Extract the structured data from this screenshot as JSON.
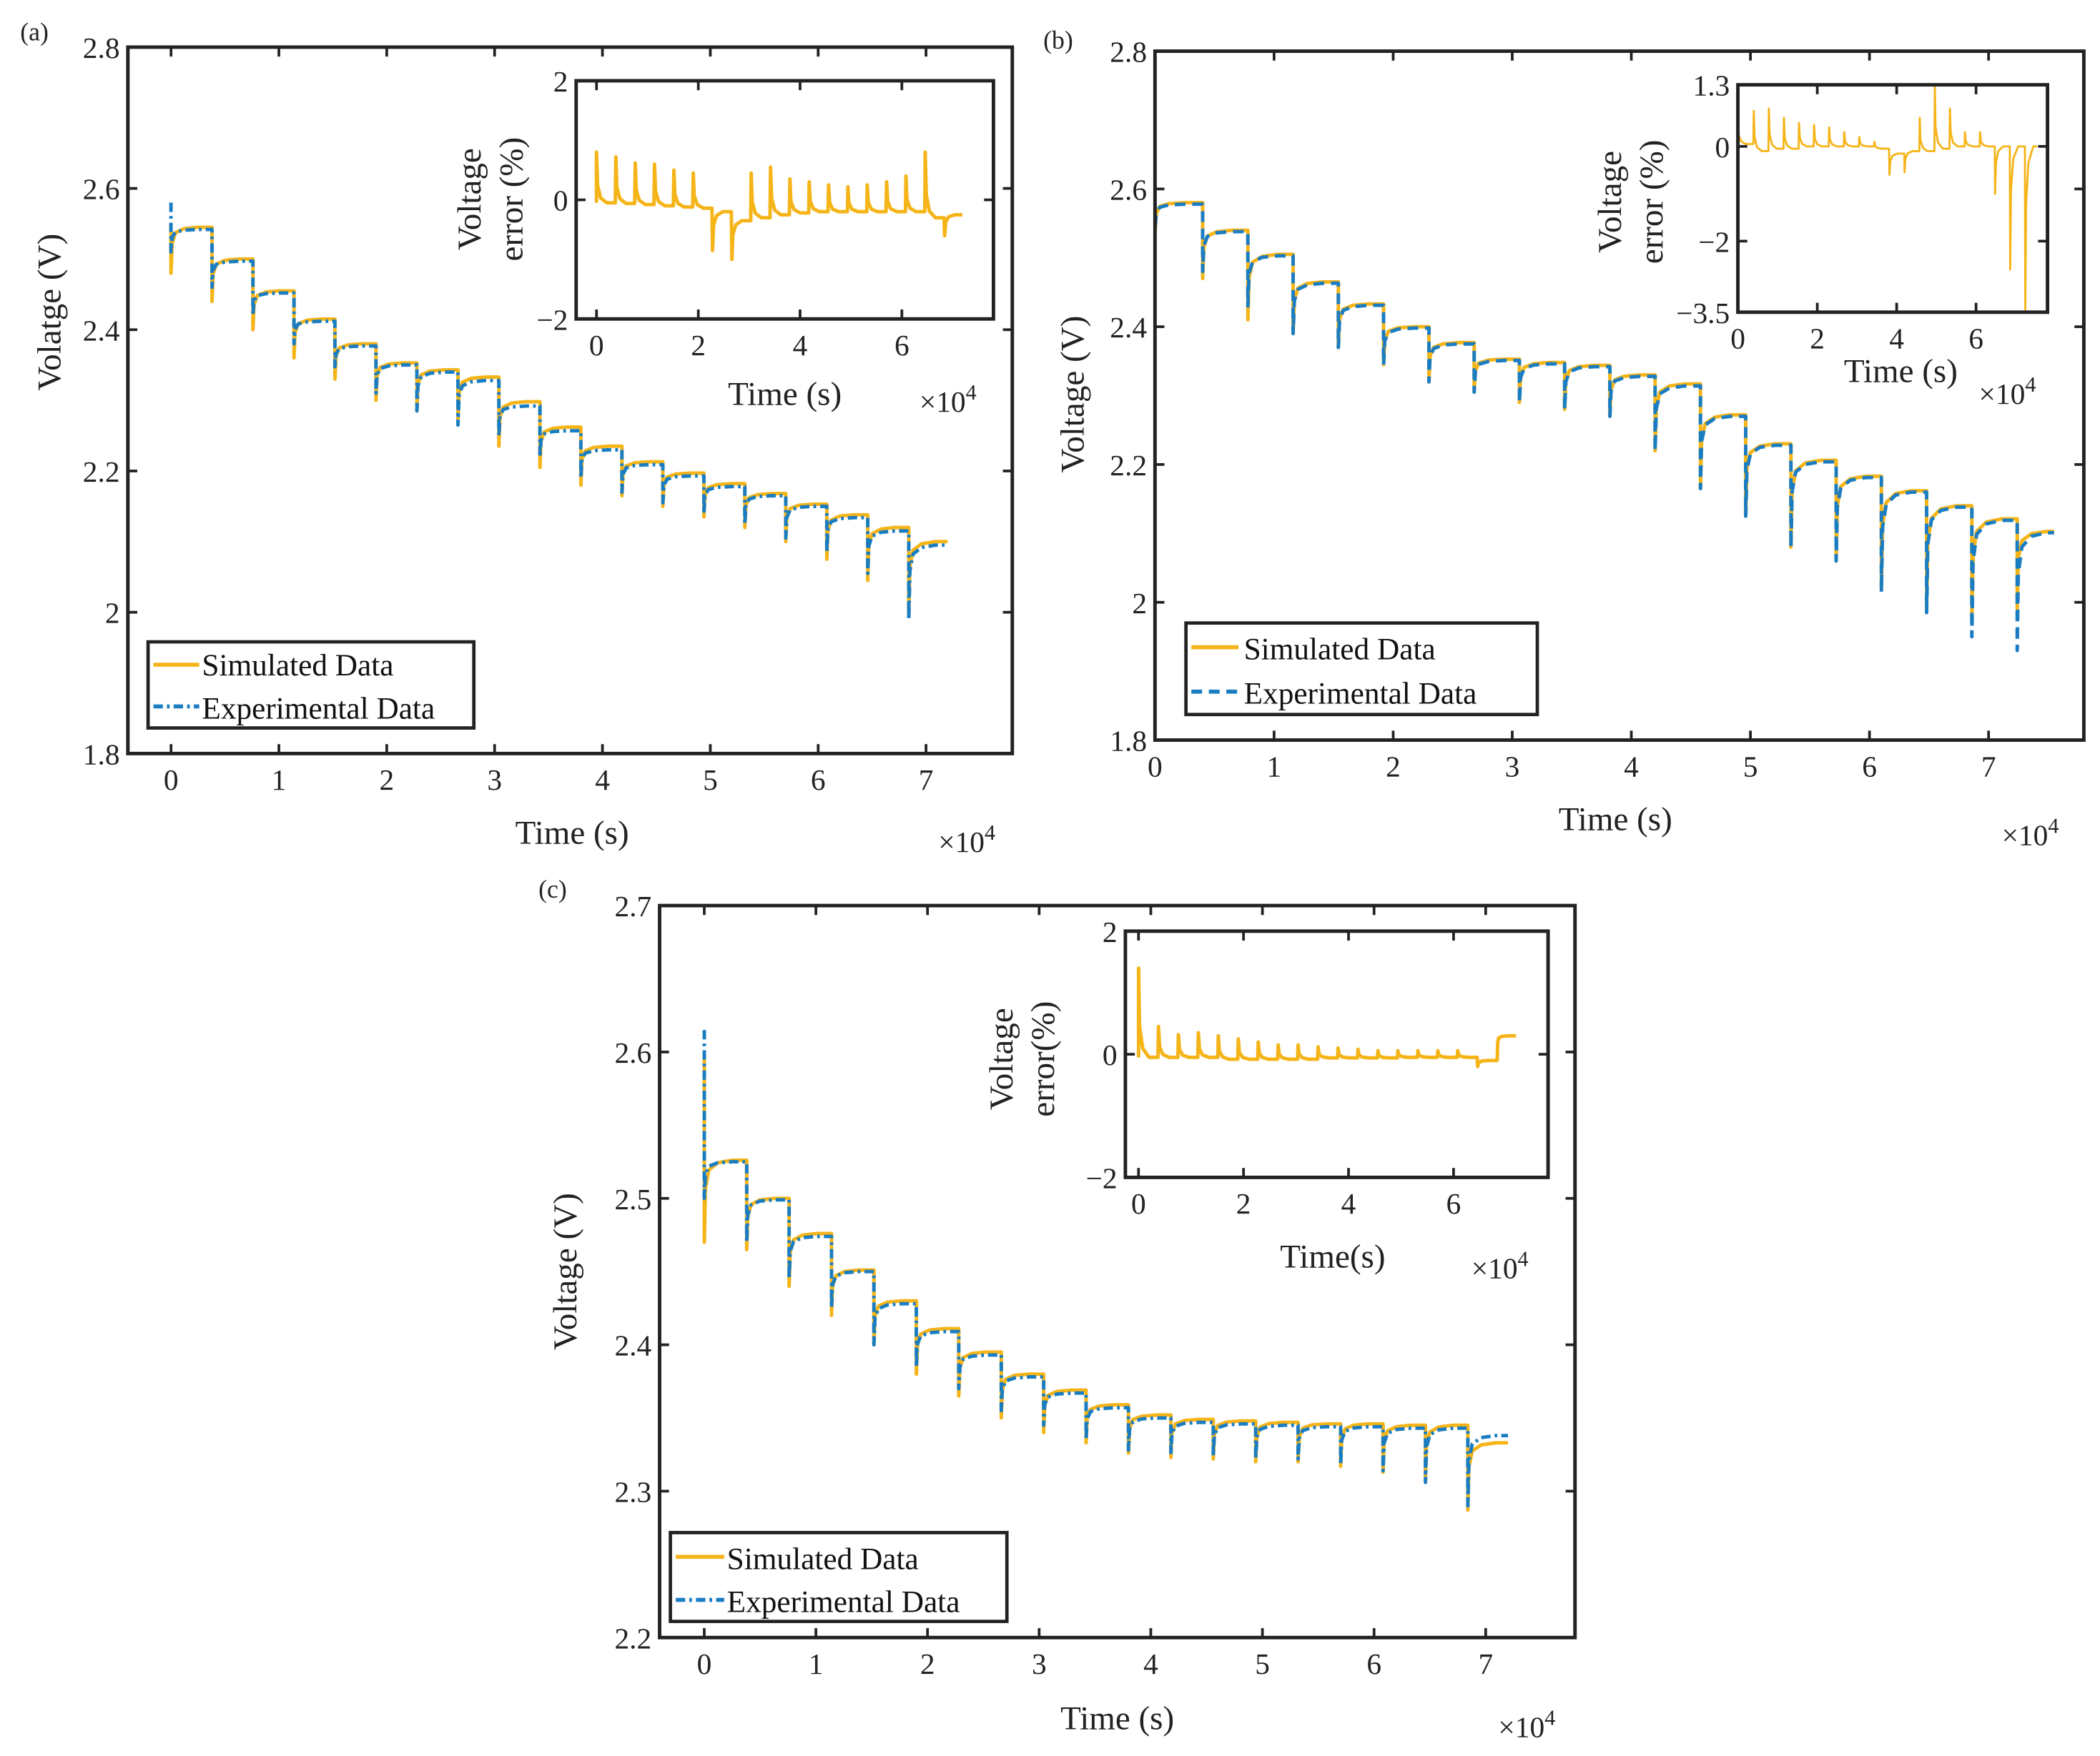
{
  "chart_data": [
    {
      "panel": "(a)",
      "type": "line",
      "xlabel": "Time (s)",
      "ylabel": "Volatge (V)",
      "x_multiplier": "×10",
      "x_exponent": "4",
      "xlim": [
        -0.4,
        7.8
      ],
      "ylim": [
        1.8,
        2.8
      ],
      "xticks": [
        0,
        1,
        2,
        3,
        4,
        5,
        6,
        7
      ],
      "xtick_labels": [
        "0",
        "1",
        "2",
        "3",
        "4",
        "5",
        "6",
        "7"
      ],
      "yticks": [
        1.8,
        2.0,
        2.2,
        2.4,
        2.6,
        2.8
      ],
      "ytick_labels": [
        "1.8",
        "2",
        "2.2",
        "2.4",
        "2.6",
        "2.8"
      ],
      "legend": "bottom-left",
      "series": [
        {
          "name": "Simulated Data",
          "color": "#F5B418",
          "style": "solid",
          "start_value": 2.55,
          "end_time": 7.2,
          "step_times": [
            0,
            0.38,
            0.76,
            1.14,
            1.52,
            1.9,
            2.28,
            2.66,
            3.04,
            3.42,
            3.8,
            4.18,
            4.56,
            4.94,
            5.32,
            5.7,
            6.08,
            6.46,
            6.84
          ],
          "plateau": [
            2.545,
            2.5,
            2.455,
            2.415,
            2.38,
            2.353,
            2.343,
            2.333,
            2.298,
            2.262,
            2.235,
            2.213,
            2.197,
            2.182,
            2.168,
            2.153,
            2.138,
            2.12,
            2.1
          ],
          "dip": [
            2.48,
            2.44,
            2.4,
            2.36,
            2.33,
            2.3,
            2.285,
            2.27,
            2.235,
            2.205,
            2.18,
            2.165,
            2.15,
            2.135,
            2.12,
            2.1,
            2.075,
            2.045,
            2.0
          ]
        },
        {
          "name": "Experimental Data",
          "color": "#1A7DC2",
          "style": "dash-dot",
          "start_value": 2.58,
          "end_time": 7.2,
          "step_times": [
            0,
            0.38,
            0.76,
            1.14,
            1.52,
            1.9,
            2.28,
            2.66,
            3.04,
            3.42,
            3.8,
            4.18,
            4.56,
            4.94,
            5.32,
            5.7,
            6.08,
            6.46,
            6.84
          ],
          "plateau": [
            2.542,
            2.497,
            2.452,
            2.412,
            2.377,
            2.35,
            2.34,
            2.328,
            2.292,
            2.257,
            2.23,
            2.209,
            2.193,
            2.178,
            2.165,
            2.15,
            2.134,
            2.115,
            2.095
          ],
          "dip": [
            2.51,
            2.46,
            2.42,
            2.38,
            2.345,
            2.31,
            2.285,
            2.265,
            2.25,
            2.22,
            2.19,
            2.17,
            2.155,
            2.14,
            2.125,
            2.105,
            2.085,
            2.055,
            1.99
          ]
        }
      ],
      "inset": {
        "xlabel": "Time (s)",
        "ylabel_lines": [
          "Voltage",
          "error (%)"
        ],
        "x_multiplier": "×10",
        "x_exponent": "4",
        "xlim": [
          -0.4,
          7.8
        ],
        "ylim": [
          -2,
          2
        ],
        "xticks": [
          0,
          2,
          4,
          6
        ],
        "xtick_labels": [
          "0",
          "2",
          "4",
          "6"
        ],
        "yticks": [
          -2,
          0,
          2
        ],
        "ytick_labels": [
          "−2",
          "0",
          "2"
        ],
        "series": {
          "name": "Voltage error",
          "color": "#F5B418",
          "end_time": 7.2,
          "step_times": [
            0,
            0.38,
            0.76,
            1.14,
            1.52,
            1.9,
            2.28,
            2.66,
            3.04,
            3.42,
            3.8,
            4.18,
            4.56,
            4.94,
            5.32,
            5.7,
            6.08,
            6.46,
            6.84
          ],
          "spike": [
            0.8,
            0.72,
            0.62,
            0.6,
            0.5,
            0.45,
            -0.85,
            -1.0,
            0.45,
            0.55,
            0.35,
            0.3,
            0.25,
            0.22,
            0.25,
            0.3,
            0.4,
            0.8,
            -0.6
          ],
          "baseline": [
            -0.05,
            -0.06,
            -0.08,
            -0.1,
            -0.12,
            -0.14,
            -0.2,
            -0.35,
            -0.3,
            -0.25,
            -0.22,
            -0.2,
            -0.2,
            -0.2,
            -0.2,
            -0.2,
            -0.2,
            -0.3,
            -0.25
          ]
        }
      }
    },
    {
      "panel": "(b)",
      "type": "line",
      "xlabel": "Time (s)",
      "ylabel": "Voltage (V)",
      "x_multiplier": "×10",
      "x_exponent": "4",
      "xlim": [
        0,
        7.8
      ],
      "ylim": [
        1.8,
        2.8
      ],
      "xticks": [
        0,
        1,
        2,
        3,
        4,
        5,
        6,
        7
      ],
      "xtick_labels": [
        "0",
        "1",
        "2",
        "3",
        "4",
        "5",
        "6",
        "7"
      ],
      "yticks": [
        1.8,
        2.0,
        2.2,
        2.4,
        2.6,
        2.8
      ],
      "ytick_labels": [
        "1.8",
        "2",
        "2.2",
        "2.4",
        "2.6",
        "2.8"
      ],
      "legend": "bottom-left",
      "series": [
        {
          "name": "Simulated Data",
          "color": "#F5B418",
          "style": "solid",
          "start_value": 2.6,
          "end_time": 7.55,
          "step_times": [
            0,
            0.4,
            0.78,
            1.16,
            1.54,
            1.92,
            2.3,
            2.68,
            3.06,
            3.44,
            3.82,
            4.2,
            4.58,
            4.96,
            5.34,
            5.72,
            6.1,
            6.48,
            6.86,
            7.24
          ],
          "plateau": [
            2.58,
            2.54,
            2.505,
            2.465,
            2.433,
            2.4,
            2.377,
            2.353,
            2.348,
            2.344,
            2.33,
            2.317,
            2.272,
            2.23,
            2.206,
            2.183,
            2.162,
            2.14,
            2.121,
            2.103
          ],
          "dip": [
            2.535,
            2.47,
            2.41,
            2.39,
            2.37,
            2.345,
            2.32,
            2.305,
            2.29,
            2.28,
            2.27,
            2.22,
            2.165,
            2.125,
            2.08,
            2.06,
            2.02,
            1.99,
            1.97,
            1.99
          ]
        },
        {
          "name": "Experimental Data",
          "color": "#1A7DC2",
          "style": "dashed",
          "start_value": 2.61,
          "end_time": 7.55,
          "step_times": [
            0,
            0.4,
            0.78,
            1.16,
            1.54,
            1.92,
            2.3,
            2.68,
            3.06,
            3.44,
            3.82,
            4.2,
            4.58,
            4.96,
            5.34,
            5.72,
            6.1,
            6.48,
            6.86,
            7.24
          ],
          "plateau": [
            2.578,
            2.538,
            2.503,
            2.463,
            2.431,
            2.398,
            2.375,
            2.351,
            2.346,
            2.342,
            2.328,
            2.314,
            2.27,
            2.228,
            2.204,
            2.181,
            2.16,
            2.138,
            2.119,
            2.101
          ],
          "dip": [
            2.54,
            2.48,
            2.43,
            2.39,
            2.37,
            2.345,
            2.32,
            2.305,
            2.29,
            2.28,
            2.27,
            2.22,
            2.165,
            2.125,
            2.08,
            2.06,
            2.015,
            1.985,
            1.95,
            1.93
          ]
        }
      ],
      "inset": {
        "xlabel": "Time (s)",
        "ylabel_lines": [
          "Voltage",
          "error (%)"
        ],
        "x_multiplier": "×10",
        "x_exponent": "4",
        "xlim": [
          0,
          7.8
        ],
        "ylim": [
          -3.5,
          1.3
        ],
        "xticks": [
          0,
          2,
          4,
          6
        ],
        "xtick_labels": [
          "0",
          "2",
          "4",
          "6"
        ],
        "yticks": [
          -3.5,
          -2,
          0,
          1.3
        ],
        "ytick_labels": [
          "−3.5",
          "−2",
          "0",
          "1.3"
        ],
        "series": {
          "name": "Voltage error",
          "color": "#F5B418",
          "end_time": 7.55,
          "step_times": [
            0,
            0.4,
            0.78,
            1.16,
            1.54,
            1.92,
            2.3,
            2.68,
            3.06,
            3.44,
            3.82,
            4.2,
            4.58,
            4.96,
            5.34,
            5.72,
            6.1,
            6.48,
            6.86,
            7.24
          ],
          "spike": [
            0.6,
            0.75,
            0.8,
            0.6,
            0.5,
            0.45,
            0.4,
            0.3,
            0.2,
            0.1,
            -0.6,
            -0.55,
            0.6,
            1.3,
            0.8,
            0.3,
            0.3,
            -1.0,
            -2.6,
            -3.5
          ],
          "baseline": [
            0.05,
            -0.1,
            -0.05,
            -0.05,
            0,
            0,
            0,
            0,
            0,
            -0.05,
            -0.15,
            -0.1,
            -0.1,
            -0.05,
            0,
            0,
            0,
            0,
            0,
            0
          ]
        }
      }
    },
    {
      "panel": "(c)",
      "type": "line",
      "xlabel": "Time (s)",
      "ylabel": "Voltage (V)",
      "x_multiplier": "×10",
      "x_exponent": "4",
      "xlim": [
        -0.4,
        7.8
      ],
      "ylim": [
        2.2,
        2.7
      ],
      "xticks": [
        0,
        1,
        2,
        3,
        4,
        5,
        6,
        7
      ],
      "xtick_labels": [
        "0",
        "1",
        "2",
        "3",
        "4",
        "5",
        "6",
        "7"
      ],
      "yticks": [
        2.2,
        2.3,
        2.4,
        2.5,
        2.6,
        2.7
      ],
      "ytick_labels": [
        "2.2",
        "2.3",
        "2.4",
        "2.5",
        "2.6",
        "2.7"
      ],
      "legend": "bottom-left",
      "series": [
        {
          "name": "Simulated Data",
          "color": "#F5B418",
          "style": "solid",
          "start_value": 2.6,
          "end_time": 7.2,
          "step_times": [
            0,
            0.38,
            0.76,
            1.14,
            1.52,
            1.9,
            2.28,
            2.66,
            3.04,
            3.42,
            3.8,
            4.18,
            4.56,
            4.94,
            5.32,
            5.7,
            6.08,
            6.46,
            6.84
          ],
          "plateau": [
            2.526,
            2.5,
            2.476,
            2.451,
            2.43,
            2.411,
            2.395,
            2.38,
            2.369,
            2.359,
            2.352,
            2.349,
            2.348,
            2.347,
            2.346,
            2.346,
            2.345,
            2.345,
            2.333
          ],
          "dip": [
            2.47,
            2.465,
            2.44,
            2.42,
            2.4,
            2.38,
            2.365,
            2.35,
            2.34,
            2.333,
            2.326,
            2.323,
            2.322,
            2.32,
            2.32,
            2.317,
            2.313,
            2.307,
            2.287
          ]
        },
        {
          "name": "Experimental Data",
          "color": "#1A7DC2",
          "style": "dash-dot",
          "start_value": 2.615,
          "end_time": 7.2,
          "step_times": [
            0,
            0.38,
            0.76,
            1.14,
            1.52,
            1.9,
            2.28,
            2.66,
            3.04,
            3.42,
            3.8,
            4.18,
            4.56,
            4.94,
            5.32,
            5.7,
            6.08,
            6.46,
            6.84
          ],
          "plateau": [
            2.525,
            2.499,
            2.474,
            2.45,
            2.428,
            2.409,
            2.393,
            2.378,
            2.367,
            2.357,
            2.35,
            2.347,
            2.346,
            2.345,
            2.344,
            2.344,
            2.343,
            2.343,
            2.338
          ],
          "dip": [
            2.5,
            2.47,
            2.445,
            2.425,
            2.4,
            2.385,
            2.37,
            2.355,
            2.345,
            2.335,
            2.328,
            2.325,
            2.324,
            2.322,
            2.322,
            2.318,
            2.314,
            2.306,
            2.29
          ]
        }
      ],
      "inset": {
        "xlabel": "Time(s)",
        "ylabel_lines": [
          "Voltage",
          "error(%)"
        ],
        "x_multiplier": "×10",
        "x_exponent": "4",
        "xlim": [
          -0.25,
          7.8
        ],
        "ylim": [
          -2,
          2
        ],
        "xticks": [
          0,
          2,
          4,
          6
        ],
        "xtick_labels": [
          "0",
          "2",
          "4",
          "6"
        ],
        "yticks": [
          -2,
          0,
          2
        ],
        "ytick_labels": [
          "−2",
          "0",
          "2"
        ],
        "series": {
          "name": "Voltage error",
          "color": "#F5B418",
          "end_time": 7.2,
          "step_times": [
            0,
            0.38,
            0.76,
            1.14,
            1.52,
            1.9,
            2.28,
            2.66,
            3.04,
            3.42,
            3.8,
            4.18,
            4.56,
            4.94,
            5.32,
            5.7,
            6.08,
            6.46,
            6.84
          ],
          "spike": [
            1.4,
            0.45,
            0.32,
            0.35,
            0.3,
            0.25,
            0.2,
            0.15,
            0.15,
            0.12,
            0.1,
            0.08,
            0.06,
            0.06,
            0.06,
            0.06,
            0.06,
            -0.2,
            0.2
          ],
          "baseline": [
            -0.05,
            -0.05,
            -0.05,
            -0.05,
            -0.08,
            -0.08,
            -0.08,
            -0.08,
            -0.08,
            -0.06,
            -0.06,
            -0.06,
            -0.06,
            -0.05,
            -0.05,
            -0.05,
            -0.05,
            -0.1,
            0.3
          ]
        }
      }
    }
  ]
}
